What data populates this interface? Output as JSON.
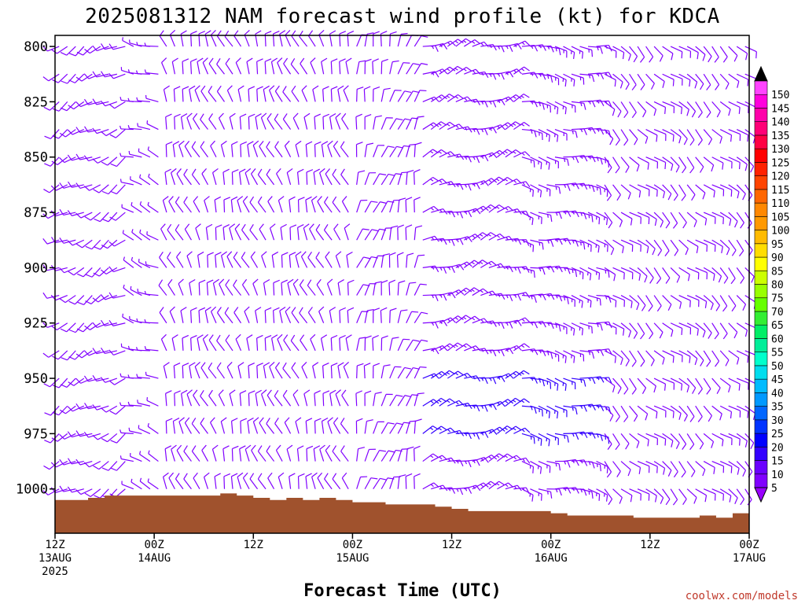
{
  "chart_data": {
    "type": "wind_profile_time_height",
    "title": "2025081312 NAM forecast wind profile (kt) for KDCA",
    "xlabel": "Forecast Time (UTC)",
    "ylabel": "",
    "credit": "coolwx.com/models",
    "y_axis": {
      "unit": "hPa",
      "reversed": true,
      "range": [
        795,
        1020
      ],
      "ticks": [
        800,
        825,
        850,
        875,
        900,
        925,
        950,
        975,
        1000
      ]
    },
    "x_axis": {
      "unit": "hours from 2025-08-13 12Z",
      "range": [
        0,
        84
      ],
      "ticks": [
        {
          "h": 0,
          "lines": [
            "12Z",
            "13AUG",
            "2025"
          ]
        },
        {
          "h": 12,
          "lines": [
            "00Z",
            "14AUG"
          ]
        },
        {
          "h": 24,
          "lines": [
            "12Z"
          ]
        },
        {
          "h": 36,
          "lines": [
            "00Z",
            "15AUG"
          ]
        },
        {
          "h": 48,
          "lines": [
            "12Z"
          ]
        },
        {
          "h": 60,
          "lines": [
            "00Z",
            "16AUG"
          ]
        },
        {
          "h": 72,
          "lines": [
            "12Z"
          ]
        },
        {
          "h": 84,
          "lines": [
            "00Z",
            "17AUG"
          ]
        }
      ]
    },
    "barb_levels_hpa": [
      800,
      812.5,
      825,
      837.5,
      850,
      862.5,
      875,
      887.5,
      900,
      912.5,
      925,
      937.5,
      950,
      962.5,
      975,
      987.5,
      1000
    ],
    "wind_regimes": [
      {
        "h_start": 0,
        "h_end": 9,
        "dir_deg": 240,
        "speed_kt": 10
      },
      {
        "h_start": 9,
        "h_end": 13,
        "dir_deg": 290,
        "speed_kt": 5
      },
      {
        "h_start": 13,
        "h_end": 36,
        "dir_deg": 340,
        "speed_kt": 10
      },
      {
        "h_start": 36,
        "h_end": 44,
        "dir_deg": 15,
        "speed_kt": 10
      },
      {
        "h_start": 44,
        "h_end": 56,
        "dir_deg": 70,
        "speed_kt": 15
      },
      {
        "h_start": 56,
        "h_end": 66,
        "dir_deg": 100,
        "speed_kt": 15
      },
      {
        "h_start": 66,
        "h_end": 84,
        "dir_deg": 130,
        "speed_kt": 10
      }
    ],
    "terrain_surface_pressure_hpa": [
      {
        "h": 0,
        "p": 1005
      },
      {
        "h": 2,
        "p": 1005
      },
      {
        "h": 4,
        "p": 1004
      },
      {
        "h": 6,
        "p": 1003
      },
      {
        "h": 10,
        "p": 1003
      },
      {
        "h": 14,
        "p": 1003
      },
      {
        "h": 18,
        "p": 1003
      },
      {
        "h": 20,
        "p": 1002
      },
      {
        "h": 22,
        "p": 1003
      },
      {
        "h": 24,
        "p": 1004
      },
      {
        "h": 26,
        "p": 1005
      },
      {
        "h": 28,
        "p": 1004
      },
      {
        "h": 30,
        "p": 1005
      },
      {
        "h": 32,
        "p": 1004
      },
      {
        "h": 34,
        "p": 1005
      },
      {
        "h": 36,
        "p": 1006
      },
      {
        "h": 38,
        "p": 1006
      },
      {
        "h": 40,
        "p": 1007
      },
      {
        "h": 44,
        "p": 1007
      },
      {
        "h": 46,
        "p": 1008
      },
      {
        "h": 48,
        "p": 1009
      },
      {
        "h": 50,
        "p": 1010
      },
      {
        "h": 56,
        "p": 1010
      },
      {
        "h": 60,
        "p": 1011
      },
      {
        "h": 62,
        "p": 1012
      },
      {
        "h": 64,
        "p": 1012
      },
      {
        "h": 70,
        "p": 1013
      },
      {
        "h": 74,
        "p": 1013
      },
      {
        "h": 78,
        "p": 1012
      },
      {
        "h": 80,
        "p": 1013
      },
      {
        "h": 82,
        "p": 1011
      },
      {
        "h": 84,
        "p": 1011
      }
    ],
    "colorbar": {
      "labels": [
        5,
        10,
        15,
        20,
        25,
        30,
        35,
        40,
        45,
        50,
        55,
        60,
        65,
        70,
        75,
        80,
        85,
        90,
        95,
        100,
        105,
        110,
        115,
        120,
        125,
        130,
        135,
        140,
        145,
        150
      ],
      "colors": [
        "#8000ff",
        "#6a00ff",
        "#3300ff",
        "#0000ff",
        "#0033ff",
        "#0066ff",
        "#0099ff",
        "#00bbff",
        "#00ddee",
        "#00ffcc",
        "#00ee99",
        "#00ee66",
        "#33ee33",
        "#66ff00",
        "#99ff00",
        "#ccff00",
        "#ffff00",
        "#ffdd00",
        "#ffbb00",
        "#ff9900",
        "#ff8800",
        "#ff6600",
        "#ff4400",
        "#ff2200",
        "#ff0000",
        "#ff0044",
        "#ff0077",
        "#ff00aa",
        "#ff00dd",
        "#ff44ff"
      ],
      "top_arrow_color": "#000000",
      "bottom_arrow_color": "#9900ff"
    },
    "colors": {
      "terrain": "#a0522d",
      "barb_default": "#8000ff",
      "barb_strong": "#3300ff"
    }
  }
}
